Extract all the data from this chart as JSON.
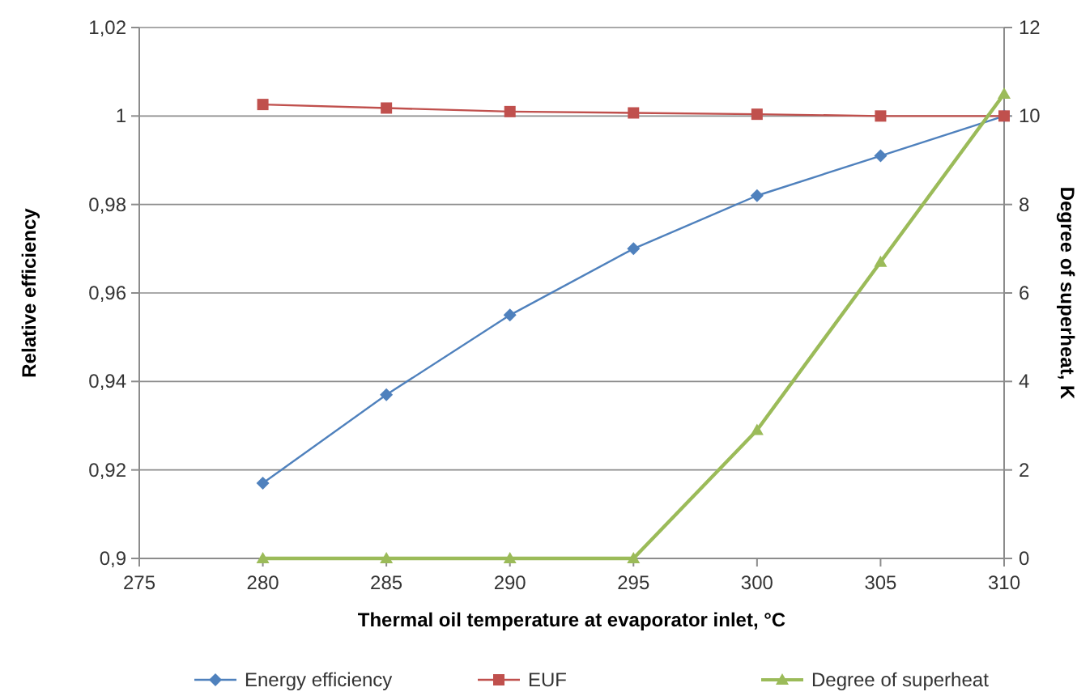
{
  "chart_data": {
    "type": "line",
    "xlabel": "Thermal oil temperature at evaporator inlet, °C",
    "ylabel": "Relative efficiency",
    "y2label": "Degree of superheat, K",
    "x": [
      280,
      285,
      290,
      295,
      300,
      305,
      310
    ],
    "xlim": [
      275,
      310
    ],
    "xticks": [
      275,
      280,
      285,
      290,
      295,
      300,
      305,
      310
    ],
    "ylim": [
      0.9,
      1.02
    ],
    "yticks": [
      {
        "value": 0.9,
        "label": "0,9"
      },
      {
        "value": 0.92,
        "label": "0,92"
      },
      {
        "value": 0.94,
        "label": "0,94"
      },
      {
        "value": 0.96,
        "label": "0,96"
      },
      {
        "value": 0.98,
        "label": "0,98"
      },
      1,
      {
        "value": 1.02,
        "label": "1,02"
      }
    ],
    "y2lim": [
      0,
      12
    ],
    "y2ticks": [
      0,
      2,
      4,
      6,
      8,
      10,
      12
    ],
    "grid": "y",
    "legend": "bottom",
    "series": [
      {
        "name": "Energy efficiency",
        "color": "#4f81bd",
        "marker": "diamond",
        "values": [
          0.917,
          0.937,
          0.955,
          0.97,
          0.982,
          0.991,
          1.0
        ]
      },
      {
        "name": "EUF",
        "color": "#c0504d",
        "marker": "square",
        "values": [
          1.0026,
          1.0018,
          1.001,
          1.0007,
          1.0004,
          1.0,
          1.0
        ]
      },
      {
        "name": "Degree of superheat",
        "color": "#9bbb59",
        "marker": "triangle",
        "axis": "y2",
        "values": [
          0,
          0,
          0,
          0,
          2.9,
          6.7,
          10.5
        ]
      }
    ]
  }
}
